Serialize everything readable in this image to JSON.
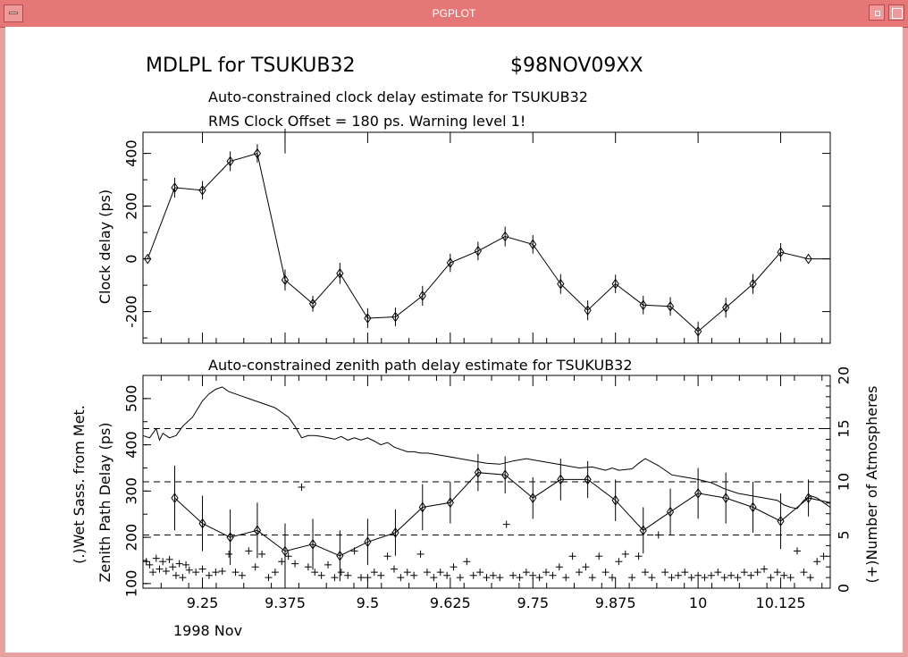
{
  "window": {
    "title": "PGPLOT"
  },
  "colors": {
    "frame": "#e57777",
    "plot": "#000000",
    "background": "#ffffff"
  },
  "header": {
    "main_title": "MDLPL for TSUKUB32",
    "session": "$98NOV09XX"
  },
  "chart_data": [
    {
      "type": "line",
      "title": "Auto-constrained clock delay estimate for TSUKUB32",
      "subtitle": "RMS Clock Offset = 180 ps. Warning level 1!",
      "ylabel": "Clock delay (ps)",
      "xlim": [
        9.16,
        10.2
      ],
      "ylim": [
        -320,
        480
      ],
      "yticks": [
        "400",
        "200",
        "0",
        "-200"
      ],
      "ytick_values": [
        400,
        200,
        0,
        -200
      ],
      "series": [
        {
          "x": [
            9.167,
            9.208,
            9.25,
            9.292,
            9.333,
            9.375,
            9.417,
            9.458,
            9.5,
            9.542,
            9.583,
            9.625,
            9.667,
            9.708,
            9.75,
            9.792,
            9.833,
            9.875,
            9.917,
            9.958,
            10.0,
            10.042,
            10.083,
            10.125,
            10.167,
            10.2
          ],
          "y": [
            0,
            270,
            260,
            370,
            400,
            -80,
            -170,
            -55,
            -225,
            -220,
            -140,
            -15,
            30,
            85,
            55,
            -95,
            -195,
            -95,
            -175,
            -180,
            -275,
            -185,
            -95,
            25,
            0,
            0
          ],
          "errors": [
            0,
            55,
            50,
            55,
            50,
            60,
            40,
            60,
            55,
            50,
            55,
            50,
            50,
            55,
            50,
            55,
            55,
            50,
            50,
            50,
            55,
            55,
            55,
            50,
            0,
            0
          ]
        }
      ],
      "top_spike": {
        "x": 9.375,
        "y_from": 400,
        "y_to": 480
      }
    },
    {
      "type": "line",
      "title": "Auto-constrained zenith path delay estimate for TSUKUB32",
      "ylabel_left_1": "(.)Wet Sass. from Met.",
      "ylabel_left_2": "Zenith Path Delay (ps)",
      "ylabel_right": "(+)Number of Atmospheres",
      "xlabel": "1998 Nov",
      "xlim": [
        9.16,
        10.2
      ],
      "ylim": [
        90,
        550
      ],
      "ylim_right": [
        0,
        20
      ],
      "yticks": [
        "500",
        "400",
        "300",
        "200",
        "100"
      ],
      "ytick_values": [
        500,
        400,
        300,
        200,
        100
      ],
      "yticks_right": [
        "20",
        "15",
        "10",
        "5",
        "0"
      ],
      "ytick_right_values": [
        20,
        15,
        10,
        5,
        0
      ],
      "xticks": [
        "9.25",
        "9.375",
        "9.5",
        "9.625",
        "9.75",
        "9.875",
        "10",
        "10.125"
      ],
      "xtick_values": [
        9.25,
        9.375,
        9.5,
        9.625,
        9.75,
        9.875,
        10.0,
        10.125
      ],
      "dashed_levels": [
        15,
        10,
        5
      ],
      "estimate_series": {
        "x": [
          9.208,
          9.25,
          9.292,
          9.333,
          9.375,
          9.417,
          9.458,
          9.5,
          9.542,
          9.583,
          9.625,
          9.667,
          9.708,
          9.75,
          9.792,
          9.833,
          9.875,
          9.917,
          9.958,
          10.0,
          10.042,
          10.083,
          10.125,
          10.167,
          10.2
        ],
        "y": [
          285,
          230,
          200,
          215,
          170,
          185,
          160,
          190,
          210,
          265,
          275,
          340,
          335,
          285,
          325,
          325,
          280,
          215,
          255,
          295,
          285,
          265,
          235,
          285,
          275
        ],
        "errors": [
          70,
          60,
          60,
          60,
          60,
          55,
          55,
          50,
          50,
          50,
          45,
          40,
          40,
          45,
          45,
          40,
          45,
          50,
          50,
          55,
          55,
          55,
          60,
          40,
          0
        ]
      },
      "wet_series": {
        "x": [
          9.16,
          9.17,
          9.18,
          9.185,
          9.19,
          9.2,
          9.21,
          9.22,
          9.235,
          9.25,
          9.26,
          9.27,
          9.28,
          9.29,
          9.3,
          9.31,
          9.32,
          9.33,
          9.34,
          9.35,
          9.36,
          9.37,
          9.38,
          9.39,
          9.4,
          9.41,
          9.42,
          9.43,
          9.44,
          9.45,
          9.46,
          9.47,
          9.48,
          9.49,
          9.5,
          9.51,
          9.52,
          9.53,
          9.54,
          9.55,
          9.56,
          9.57,
          9.58,
          9.59,
          9.6,
          9.62,
          9.64,
          9.66,
          9.68,
          9.7,
          9.72,
          9.74,
          9.76,
          9.78,
          9.8,
          9.82,
          9.84,
          9.86,
          9.87,
          9.88,
          9.9,
          9.91,
          9.92,
          9.94,
          9.96,
          9.98,
          10.0,
          10.02,
          10.04,
          10.06,
          10.08,
          10.1,
          10.12,
          10.13,
          10.14,
          10.15,
          10.16,
          10.17,
          10.18,
          10.19,
          10.2
        ],
        "y": [
          420,
          415,
          435,
          410,
          425,
          415,
          420,
          440,
          460,
          495,
          510,
          520,
          525,
          515,
          510,
          505,
          500,
          495,
          490,
          485,
          480,
          470,
          460,
          440,
          415,
          420,
          420,
          418,
          415,
          412,
          418,
          410,
          415,
          410,
          415,
          408,
          400,
          405,
          395,
          390,
          385,
          385,
          382,
          382,
          380,
          375,
          370,
          365,
          360,
          358,
          365,
          370,
          365,
          360,
          355,
          350,
          352,
          345,
          350,
          345,
          348,
          360,
          370,
          355,
          335,
          330,
          325,
          318,
          305,
          295,
          290,
          285,
          280,
          270,
          265,
          262,
          280,
          290,
          285,
          275,
          265
        ]
      },
      "atmospheres_series": {
        "x": [
          9.165,
          9.17,
          9.175,
          9.18,
          9.185,
          9.19,
          9.195,
          9.2,
          9.205,
          9.21,
          9.215,
          9.22,
          9.225,
          9.23,
          9.24,
          9.25,
          9.26,
          9.27,
          9.28,
          9.29,
          9.3,
          9.31,
          9.32,
          9.33,
          9.34,
          9.35,
          9.36,
          9.37,
          9.38,
          9.39,
          9.4,
          9.41,
          9.42,
          9.43,
          9.44,
          9.45,
          9.46,
          9.47,
          9.48,
          9.49,
          9.5,
          9.51,
          9.52,
          9.53,
          9.54,
          9.55,
          9.56,
          9.57,
          9.58,
          9.59,
          9.6,
          9.61,
          9.62,
          9.63,
          9.64,
          9.65,
          9.66,
          9.67,
          9.68,
          9.69,
          9.7,
          9.71,
          9.72,
          9.73,
          9.74,
          9.75,
          9.76,
          9.77,
          9.78,
          9.79,
          9.8,
          9.81,
          9.82,
          9.83,
          9.84,
          9.85,
          9.86,
          9.87,
          9.88,
          9.89,
          9.9,
          9.91,
          9.92,
          9.93,
          9.94,
          9.95,
          9.96,
          9.97,
          9.98,
          9.99,
          10.0,
          10.01,
          10.02,
          10.03,
          10.04,
          10.05,
          10.06,
          10.07,
          10.08,
          10.09,
          10.1,
          10.11,
          10.12,
          10.13,
          10.14,
          10.15,
          10.16,
          10.17,
          10.18,
          10.19
        ],
        "y": [
          2.5,
          2.2,
          1.5,
          2.8,
          1.8,
          2.5,
          1.6,
          2.7,
          2.0,
          1.2,
          2.3,
          1.0,
          2.2,
          1.7,
          1.5,
          1.8,
          1.2,
          1.5,
          1.6,
          3.2,
          1.5,
          1.2,
          3.5,
          2.0,
          3.2,
          1.0,
          1.5,
          2.5,
          3.0,
          2.3,
          9.5,
          2.0,
          1.5,
          1.2,
          2.2,
          1.0,
          1.5,
          1.2,
          3.5,
          1.0,
          1.0,
          1.5,
          1.2,
          3.0,
          1.8,
          1.0,
          1.5,
          1.2,
          3.2,
          1.5,
          1.0,
          1.5,
          1.2,
          2.0,
          1.0,
          2.5,
          1.2,
          1.5,
          1.0,
          1.2,
          1.0,
          6.0,
          1.2,
          1.0,
          1.5,
          1.2,
          1.0,
          1.5,
          1.2,
          2.0,
          1.0,
          3.0,
          1.5,
          2.0,
          1.0,
          3.0,
          1.5,
          1.0,
          2.5,
          3.2,
          1.0,
          3.0,
          1.5,
          1.0,
          5.0,
          1.5,
          1.0,
          1.2,
          1.5,
          1.0,
          1.2,
          1.0,
          1.2,
          1.5,
          1.0,
          1.2,
          1.0,
          1.5,
          1.2,
          1.5,
          1.8,
          1.0,
          1.5,
          1.2,
          1.0,
          3.5,
          1.5,
          1.0,
          2.5,
          3.0
        ]
      }
    }
  ]
}
